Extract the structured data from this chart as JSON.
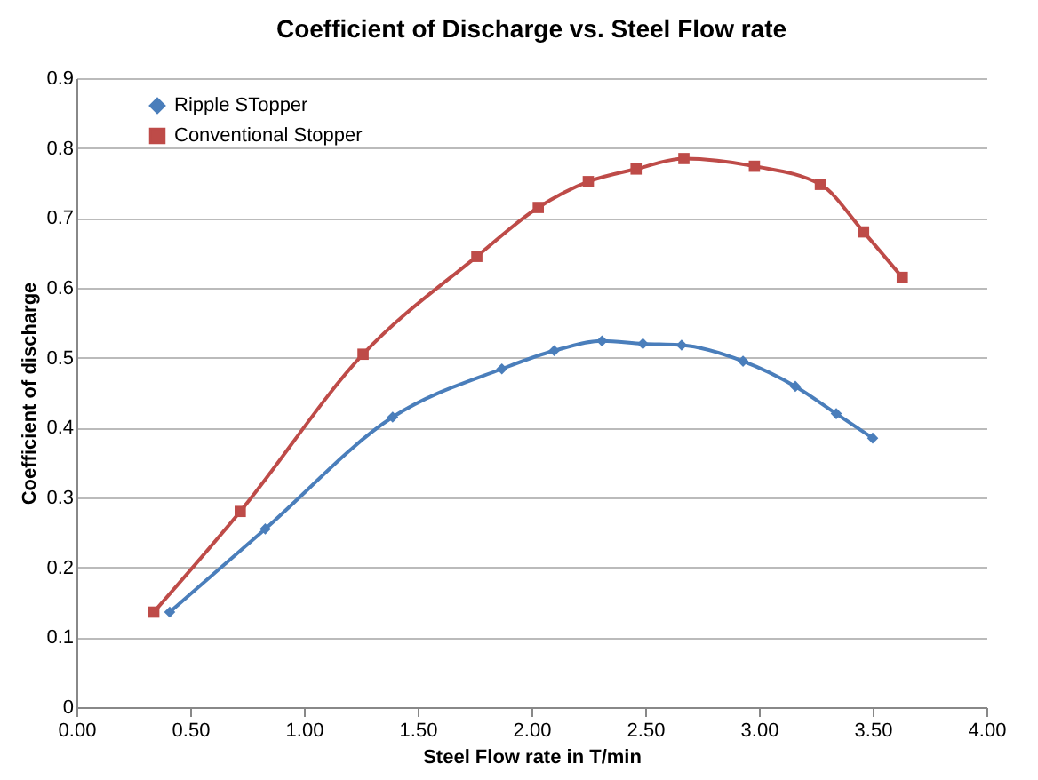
{
  "chart_data": {
    "type": "line",
    "title": "Coefficient of Discharge vs. Steel Flow rate",
    "xlabel": "Steel Flow rate in T/min",
    "ylabel": "Coefficient of discharge",
    "xlim": [
      0,
      4
    ],
    "xticks": [
      {
        "value": 0,
        "label": "0.00"
      },
      {
        "value": 0.5,
        "label": "0.50"
      },
      {
        "value": 1,
        "label": "1.00"
      },
      {
        "value": 1.5,
        "label": "1.50"
      },
      {
        "value": 2,
        "label": "2.00"
      },
      {
        "value": 2.5,
        "label": "2.50"
      },
      {
        "value": 3,
        "label": "3.00"
      },
      {
        "value": 3.5,
        "label": "3.50"
      },
      {
        "value": 4,
        "label": "4.00"
      }
    ],
    "ylim": [
      0,
      0.9
    ],
    "yticks": [
      0,
      0.1,
      0.2,
      0.3,
      0.4,
      0.5,
      0.6,
      0.7,
      0.8,
      0.9
    ],
    "grid": "y",
    "legend": "top left",
    "series": [
      {
        "name": "Ripple STopper",
        "color": "#4a7ebb",
        "marker": "diamond",
        "x": [
          0.41,
          0.83,
          1.39,
          1.87,
          2.1,
          2.31,
          2.49,
          2.66,
          2.93,
          3.16,
          3.34,
          3.5
        ],
        "values": [
          0.136,
          0.255,
          0.415,
          0.484,
          0.51,
          0.524,
          0.52,
          0.518,
          0.495,
          0.459,
          0.42,
          0.385
        ]
      },
      {
        "name": "Conventional Stopper",
        "color": "#be4b48",
        "marker": "square",
        "x": [
          0.34,
          0.72,
          1.26,
          1.76,
          2.03,
          2.25,
          2.46,
          2.67,
          2.98,
          3.27,
          3.46,
          3.63
        ],
        "values": [
          0.136,
          0.28,
          0.505,
          0.645,
          0.715,
          0.752,
          0.77,
          0.785,
          0.774,
          0.748,
          0.68,
          0.615
        ]
      }
    ]
  }
}
